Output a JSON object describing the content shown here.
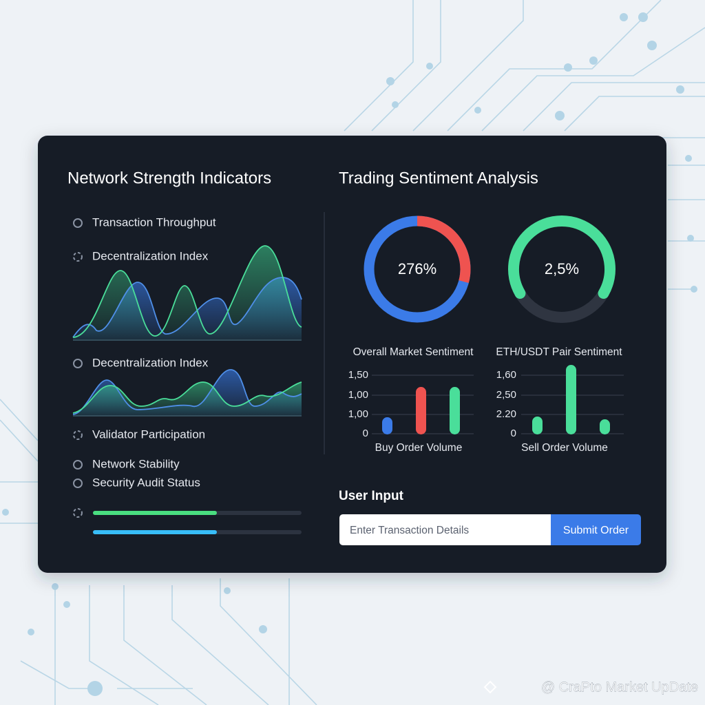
{
  "left_panel": {
    "title": "Network Strength Indicators",
    "items": [
      "Transaction Throughput",
      "Decentralization Index",
      "Decentralization Index",
      "Validator Participation",
      "Network Stability",
      "Security Audit Status"
    ]
  },
  "right_panel": {
    "title": "Trading Sentiment Analysis",
    "gauges": [
      {
        "value_label": "276%",
        "caption": "Overall Market Sentiment"
      },
      {
        "value_label": "2,5%",
        "caption": "ETH/USDT Pair Sentiment"
      }
    ],
    "bar_charts": [
      {
        "tick_labels": [
          "1,50",
          "1,00",
          "1,00",
          "0"
        ],
        "caption": "Buy Order Volume"
      },
      {
        "tick_labels": [
          "1,60",
          "2,50",
          "2.20",
          "0"
        ],
        "caption": "Sell Order Volume"
      }
    ],
    "user_input": {
      "title": "User Input",
      "placeholder": "Enter Transaction Details",
      "button": "Submit Order"
    }
  },
  "watermark": "@ CraPto Market UpDate"
}
